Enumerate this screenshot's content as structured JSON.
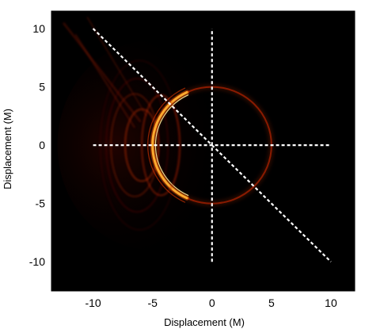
{
  "chart_data": {
    "type": "heatmap",
    "title": "",
    "xlabel": "Displacement (M)",
    "ylabel": "Displacement (M)",
    "xlim": [
      -13.5,
      12
    ],
    "ylim": [
      -12.5,
      11.5
    ],
    "x_ticks": [
      {
        "value": -10,
        "label": "-10"
      },
      {
        "value": -5,
        "label": "-5"
      },
      {
        "value": 0,
        "label": "0"
      },
      {
        "value": 5,
        "label": "5"
      },
      {
        "value": 10,
        "label": "10"
      }
    ],
    "y_ticks": [
      {
        "value": 10,
        "label": "10"
      },
      {
        "value": 5,
        "label": "5"
      },
      {
        "value": 0,
        "label": "0"
      },
      {
        "value": -5,
        "label": "-5"
      },
      {
        "value": -10,
        "label": "-10"
      }
    ],
    "background_color": "#000000",
    "colormap": "hot",
    "image_features": {
      "photon_ring": {
        "center": [
          0,
          0
        ],
        "radius": 5,
        "brightest_side": "left"
      },
      "outer_arcs": {
        "center": [
          -6.5,
          0
        ]
      }
    },
    "overlay_lines": [
      {
        "name": "horizontal-cut",
        "style": "dashed",
        "color": "#ffffff",
        "points": [
          [
            -10,
            0
          ],
          [
            10,
            0
          ]
        ]
      },
      {
        "name": "vertical-cut",
        "style": "dashed",
        "color": "#ffffff",
        "points": [
          [
            0,
            -10
          ],
          [
            0,
            10
          ]
        ]
      },
      {
        "name": "diagonal-cut",
        "style": "dashed",
        "color": "#ffffff",
        "points": [
          [
            -10,
            10
          ],
          [
            10,
            -10
          ]
        ]
      }
    ],
    "grid": false,
    "legend": "none"
  }
}
